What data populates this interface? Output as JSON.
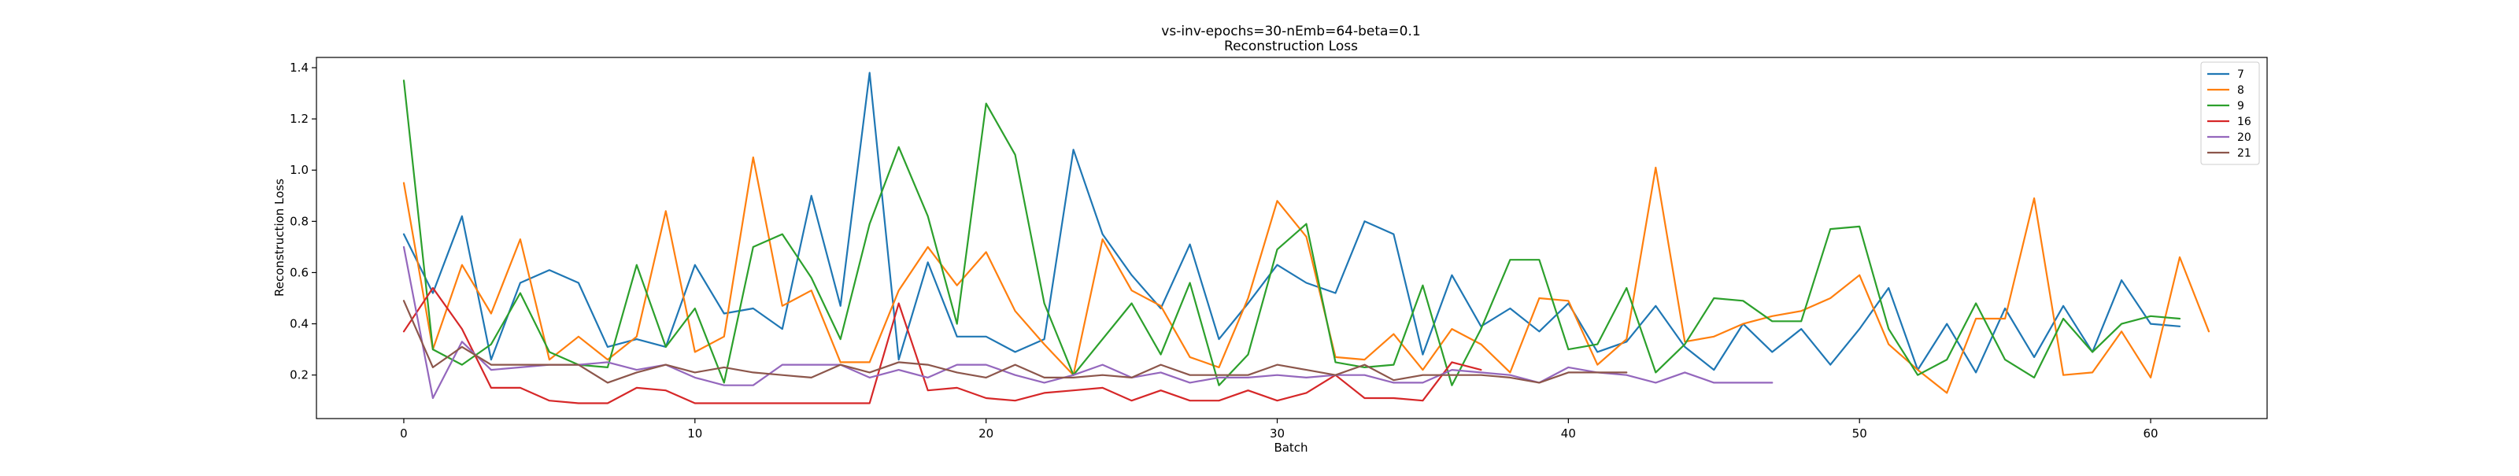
{
  "chart_data": {
    "type": "line",
    "title": "vs-inv-epochs=30-nEmb=64-beta=0.1",
    "subtitle": "Reconstruction Loss",
    "xlabel": "Batch",
    "ylabel": "Reconstruction Loss",
    "xlim": [
      -3,
      64
    ],
    "ylim": [
      0.03,
      1.44
    ],
    "xticks": [
      0,
      10,
      20,
      30,
      40,
      50,
      60
    ],
    "yticks": [
      0.2,
      0.4,
      0.6,
      0.8,
      1.0,
      1.2,
      1.4
    ],
    "ytick_labels": [
      "0.2",
      "0.4",
      "0.6",
      "0.8",
      "1.0",
      "1.2",
      "1.4"
    ],
    "grid": false,
    "legend_position": "top-right",
    "series": [
      {
        "name": "7",
        "color": "#1f77b4",
        "values": [
          0.75,
          0.52,
          0.82,
          0.26,
          0.56,
          0.61,
          0.56,
          0.31,
          0.34,
          0.31,
          0.63,
          0.44,
          0.46,
          0.38,
          0.9,
          0.47,
          1.38,
          0.26,
          0.64,
          0.35,
          0.35,
          0.29,
          0.34,
          1.08,
          0.75,
          0.59,
          0.46,
          0.71,
          0.34,
          0.48,
          0.63,
          0.56,
          0.52,
          0.8,
          0.75,
          0.28,
          0.59,
          0.39,
          0.46,
          0.37,
          0.48,
          0.29,
          0.33,
          0.47,
          0.31,
          0.22,
          0.4,
          0.29,
          0.38,
          0.24,
          0.38,
          0.54,
          0.22,
          0.4,
          0.21,
          0.46,
          0.27,
          0.47,
          0.29,
          0.57,
          0.4,
          0.39
        ]
      },
      {
        "name": "8",
        "color": "#ff7f0e",
        "values": [
          0.95,
          0.3,
          0.63,
          0.44,
          0.73,
          0.26,
          0.35,
          0.26,
          0.35,
          0.84,
          0.29,
          0.35,
          1.05,
          0.47,
          0.53,
          0.25,
          0.25,
          0.53,
          0.7,
          0.55,
          0.68,
          0.45,
          0.32,
          0.2,
          0.73,
          0.53,
          0.47,
          0.27,
          0.23,
          0.5,
          0.88,
          0.74,
          0.27,
          0.26,
          0.36,
          0.22,
          0.38,
          0.32,
          0.21,
          0.5,
          0.49,
          0.24,
          0.34,
          1.01,
          0.33,
          0.35,
          0.4,
          0.43,
          0.45,
          0.5,
          0.59,
          0.32,
          0.22,
          0.13,
          0.42,
          0.42,
          0.89,
          0.2,
          0.21,
          0.37,
          0.19,
          0.66,
          0.37
        ]
      },
      {
        "name": "9",
        "color": "#2ca02c",
        "values": [
          1.35,
          0.3,
          0.24,
          0.32,
          0.52,
          0.29,
          0.24,
          0.23,
          0.63,
          0.31,
          0.46,
          0.17,
          0.7,
          0.75,
          0.58,
          0.34,
          0.79,
          1.09,
          0.82,
          0.4,
          1.26,
          1.06,
          0.48,
          0.2,
          0.34,
          0.48,
          0.28,
          0.56,
          0.16,
          0.28,
          0.69,
          0.79,
          0.25,
          0.23,
          0.24,
          0.55,
          0.16,
          0.38,
          0.65,
          0.65,
          0.3,
          0.32,
          0.54,
          0.21,
          0.32,
          0.5,
          0.49,
          0.41,
          0.41,
          0.77,
          0.78,
          0.38,
          0.2,
          0.26,
          0.48,
          0.26,
          0.19,
          0.42,
          0.29,
          0.4,
          0.43,
          0.42
        ]
      },
      {
        "name": "16",
        "color": "#d62728",
        "values": [
          0.37,
          0.54,
          0.38,
          0.15,
          0.15,
          0.1,
          0.09,
          0.09,
          0.15,
          0.14,
          0.09,
          0.09,
          0.09,
          0.09,
          0.09,
          0.09,
          0.09,
          0.48,
          0.14,
          0.15,
          0.11,
          0.1,
          0.13,
          0.14,
          0.15,
          0.1,
          0.14,
          0.1,
          0.1,
          0.14,
          0.1,
          0.13,
          0.2,
          0.11,
          0.11,
          0.1,
          0.25,
          0.22
        ]
      },
      {
        "name": "20",
        "color": "#9467bd",
        "values": [
          0.7,
          0.11,
          0.33,
          0.22,
          0.23,
          0.24,
          0.24,
          0.25,
          0.22,
          0.24,
          0.19,
          0.16,
          0.16,
          0.24,
          0.24,
          0.24,
          0.19,
          0.22,
          0.19,
          0.24,
          0.24,
          0.2,
          0.17,
          0.2,
          0.24,
          0.19,
          0.21,
          0.17,
          0.19,
          0.19,
          0.2,
          0.19,
          0.2,
          0.2,
          0.17,
          0.17,
          0.22,
          0.21,
          0.2,
          0.17,
          0.23,
          0.21,
          0.2,
          0.17,
          0.21,
          0.17,
          0.17,
          0.17
        ]
      },
      {
        "name": "21",
        "color": "#8c564b",
        "values": [
          0.49,
          0.23,
          0.31,
          0.24,
          0.24,
          0.24,
          0.24,
          0.17,
          0.21,
          0.24,
          0.21,
          0.23,
          0.21,
          0.2,
          0.19,
          0.24,
          0.21,
          0.25,
          0.24,
          0.21,
          0.19,
          0.24,
          0.19,
          0.19,
          0.2,
          0.19,
          0.24,
          0.2,
          0.2,
          0.2,
          0.24,
          0.22,
          0.2,
          0.24,
          0.18,
          0.2,
          0.2,
          0.2,
          0.19,
          0.17,
          0.21,
          0.21,
          0.21
        ]
      }
    ]
  }
}
